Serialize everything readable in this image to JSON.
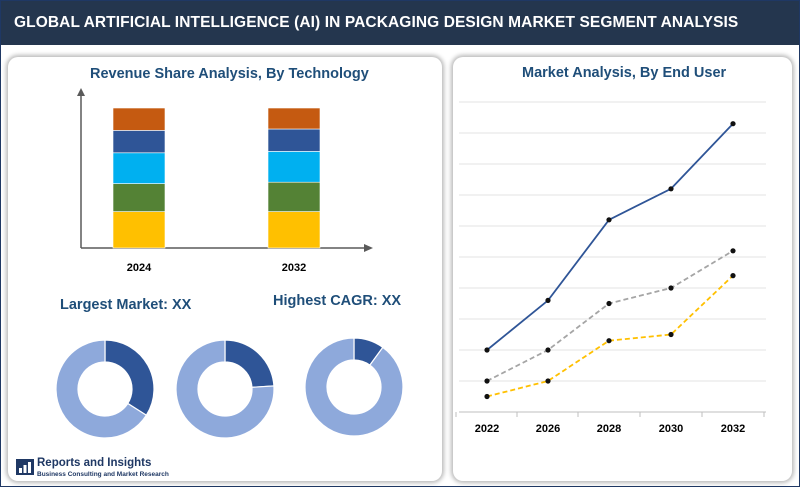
{
  "banner": {
    "title": "GLOBAL ARTIFICIAL INTELLIGENCE (AI) IN PACKAGING DESIGN MARKET SEGMENT ANALYSIS"
  },
  "left_panel": {
    "technology_title": "Revenue Share Analysis, By Technology",
    "largest_market": "Largest Market: XX",
    "highest_cagr": "Highest CAGR: XX"
  },
  "right_panel": {
    "end_user_title": "Market Analysis, By End User"
  },
  "logo": {
    "name": "Reports and Insights",
    "tagline": "Business Consulting and Market Research"
  },
  "colors": {
    "banner": "#24364e",
    "title_text": "#1f4e79",
    "stack": [
      "#ffc000",
      "#548235",
      "#00b0f0",
      "#2f5597",
      "#c55a11"
    ],
    "donut_light": "#8ea9db",
    "donut_dark": "#2f5597",
    "line_blue": "#2f5597",
    "line_gray": "#a5a5a5",
    "line_yellow": "#ffc000"
  },
  "chart_data": [
    {
      "type": "bar",
      "stacked": true,
      "title": "Revenue Share Analysis, By Technology",
      "categories": [
        "2024",
        "2032"
      ],
      "series": [
        {
          "values": [
            26,
            26
          ]
        },
        {
          "values": [
            20,
            21
          ]
        },
        {
          "values": [
            22,
            22
          ]
        },
        {
          "values": [
            16,
            16
          ]
        },
        {
          "values": [
            16,
            15
          ]
        }
      ],
      "ylim": [
        0,
        100
      ],
      "grid": false
    },
    {
      "type": "pie",
      "donut": true,
      "slices": [
        {
          "name": "highlight",
          "value": 34
        },
        {
          "name": "rest",
          "value": 66
        }
      ]
    },
    {
      "type": "pie",
      "donut": true,
      "slices": [
        {
          "name": "highlight",
          "value": 24
        },
        {
          "name": "rest",
          "value": 76
        }
      ]
    },
    {
      "type": "pie",
      "donut": true,
      "slices": [
        {
          "name": "highlight",
          "value": 10
        },
        {
          "name": "rest",
          "value": 90
        }
      ]
    },
    {
      "type": "line",
      "title": "Market Analysis, By End User",
      "x": [
        "2022",
        "2026",
        "2028",
        "2030",
        "2032"
      ],
      "series": [
        {
          "style": "solid",
          "values": [
            2.0,
            3.6,
            6.2,
            7.2,
            9.3
          ]
        },
        {
          "style": "dashed",
          "values": [
            1.0,
            2.0,
            3.5,
            4.0,
            5.2
          ]
        },
        {
          "style": "dashed",
          "values": [
            0.5,
            1.0,
            2.3,
            2.5,
            4.4
          ]
        }
      ],
      "ylim": [
        0,
        10
      ],
      "grid": true,
      "legend": "none"
    }
  ]
}
